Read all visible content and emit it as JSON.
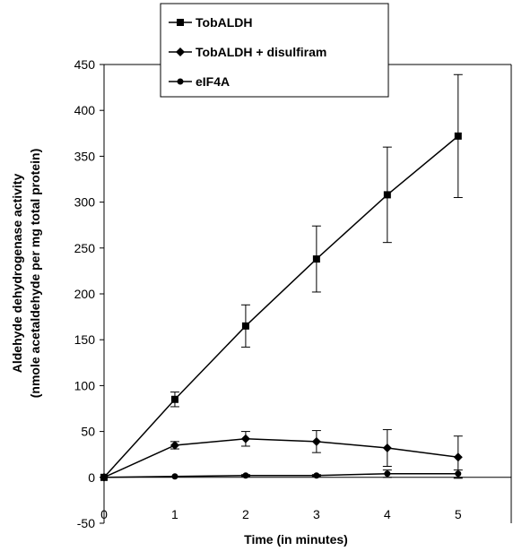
{
  "chart_data": {
    "type": "line",
    "title": "",
    "xlabel": "Time (in minutes)",
    "ylabel_line1": "Aldehyde dehydrogenase activity",
    "ylabel_line2": "(nmole acetaldehyde per mg total protein)",
    "x": [
      0,
      1,
      2,
      3,
      4,
      5
    ],
    "x_ticks": [
      "0",
      "1",
      "2",
      "3",
      "4",
      "5"
    ],
    "xlim": [
      0,
      5.75
    ],
    "ylim": [
      -50,
      450
    ],
    "y_ticks": [
      "-50",
      "0",
      "50",
      "100",
      "150",
      "200",
      "250",
      "300",
      "350",
      "400",
      "450"
    ],
    "grid": false,
    "legend_position": "top-center",
    "series": [
      {
        "name": "TobALDH",
        "marker": "square",
        "color": "#000000",
        "values": [
          0,
          85,
          165,
          238,
          308,
          372
        ],
        "error": [
          0,
          8,
          23,
          36,
          52,
          67
        ]
      },
      {
        "name": "TobALDH + disulfiram",
        "marker": "diamond",
        "color": "#000000",
        "values": [
          0,
          35,
          42,
          39,
          32,
          22
        ],
        "error": [
          0,
          4,
          8,
          12,
          20,
          23
        ]
      },
      {
        "name": "eIF4A",
        "marker": "circle",
        "color": "#000000",
        "values": [
          0,
          1,
          2,
          2,
          4,
          4
        ],
        "error": [
          0,
          0,
          1,
          1,
          4,
          4
        ]
      }
    ]
  }
}
